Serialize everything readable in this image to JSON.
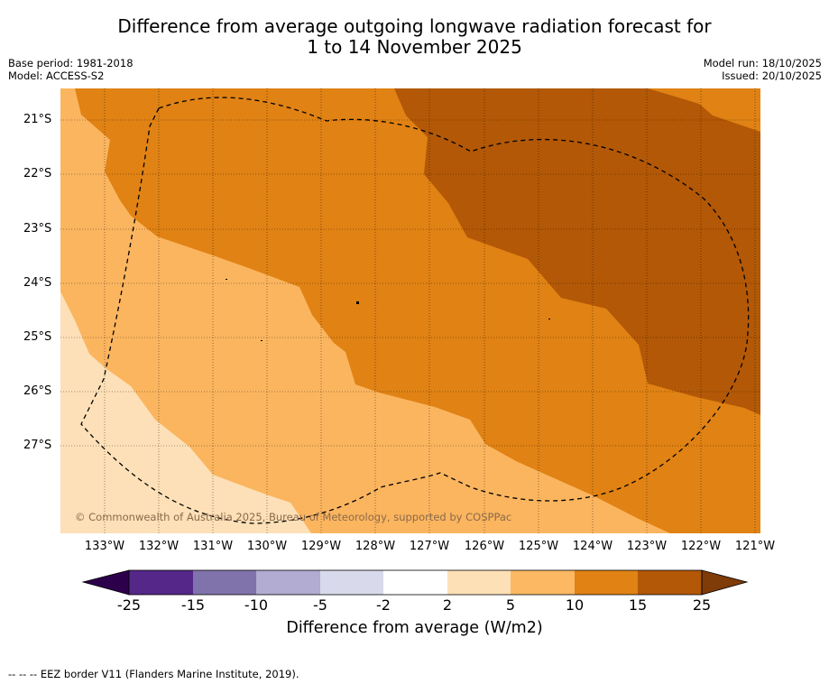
{
  "header": {
    "title_line1": "Difference from average outgoing longwave radiation forecast for",
    "title_line2": "1 to 14 November 2025",
    "base_period": "Base period: 1981-2018",
    "model": "Model: ACCESS-S2",
    "model_run": "Model run: 18/10/2025",
    "issued": "Issued: 20/10/2025"
  },
  "map": {
    "lat_labels": [
      "21°S",
      "22°S",
      "23°S",
      "24°S",
      "25°S",
      "26°S",
      "27°S"
    ],
    "lon_labels": [
      "133°W",
      "132°W",
      "131°W",
      "130°W",
      "129°W",
      "128°W",
      "127°W",
      "126°W",
      "125°W",
      "124°W",
      "123°W",
      "122°W",
      "121°W"
    ],
    "copyright": "© Commonwealth of Australia 2025, Bureau of Meteorology, supported by COSPPac",
    "eez_label": "EEZ border",
    "fill_colors": {
      "2_to_5": "#fde0b7",
      "5_to_10": "#fbb55f",
      "10_to_15": "#e08214",
      "15_to_25": "#b35806"
    }
  },
  "colorbar": {
    "ticks": [
      "-25",
      "-15",
      "-10",
      "-5",
      "-2",
      "2",
      "5",
      "10",
      "15",
      "25"
    ],
    "colors": [
      "#542788",
      "#8073ac",
      "#b2abd2",
      "#d8daeb",
      "#ffffff",
      "#fee0b6",
      "#fdb863",
      "#e08214",
      "#b35806"
    ],
    "extend_low_color": "#2d004b",
    "extend_high_color": "#7f3b08",
    "label": "Difference from average (W/m2)"
  },
  "footer": {
    "legend_text": "--  --  -- EEZ border V11 (Flanders Marine Institute, 2019)."
  }
}
